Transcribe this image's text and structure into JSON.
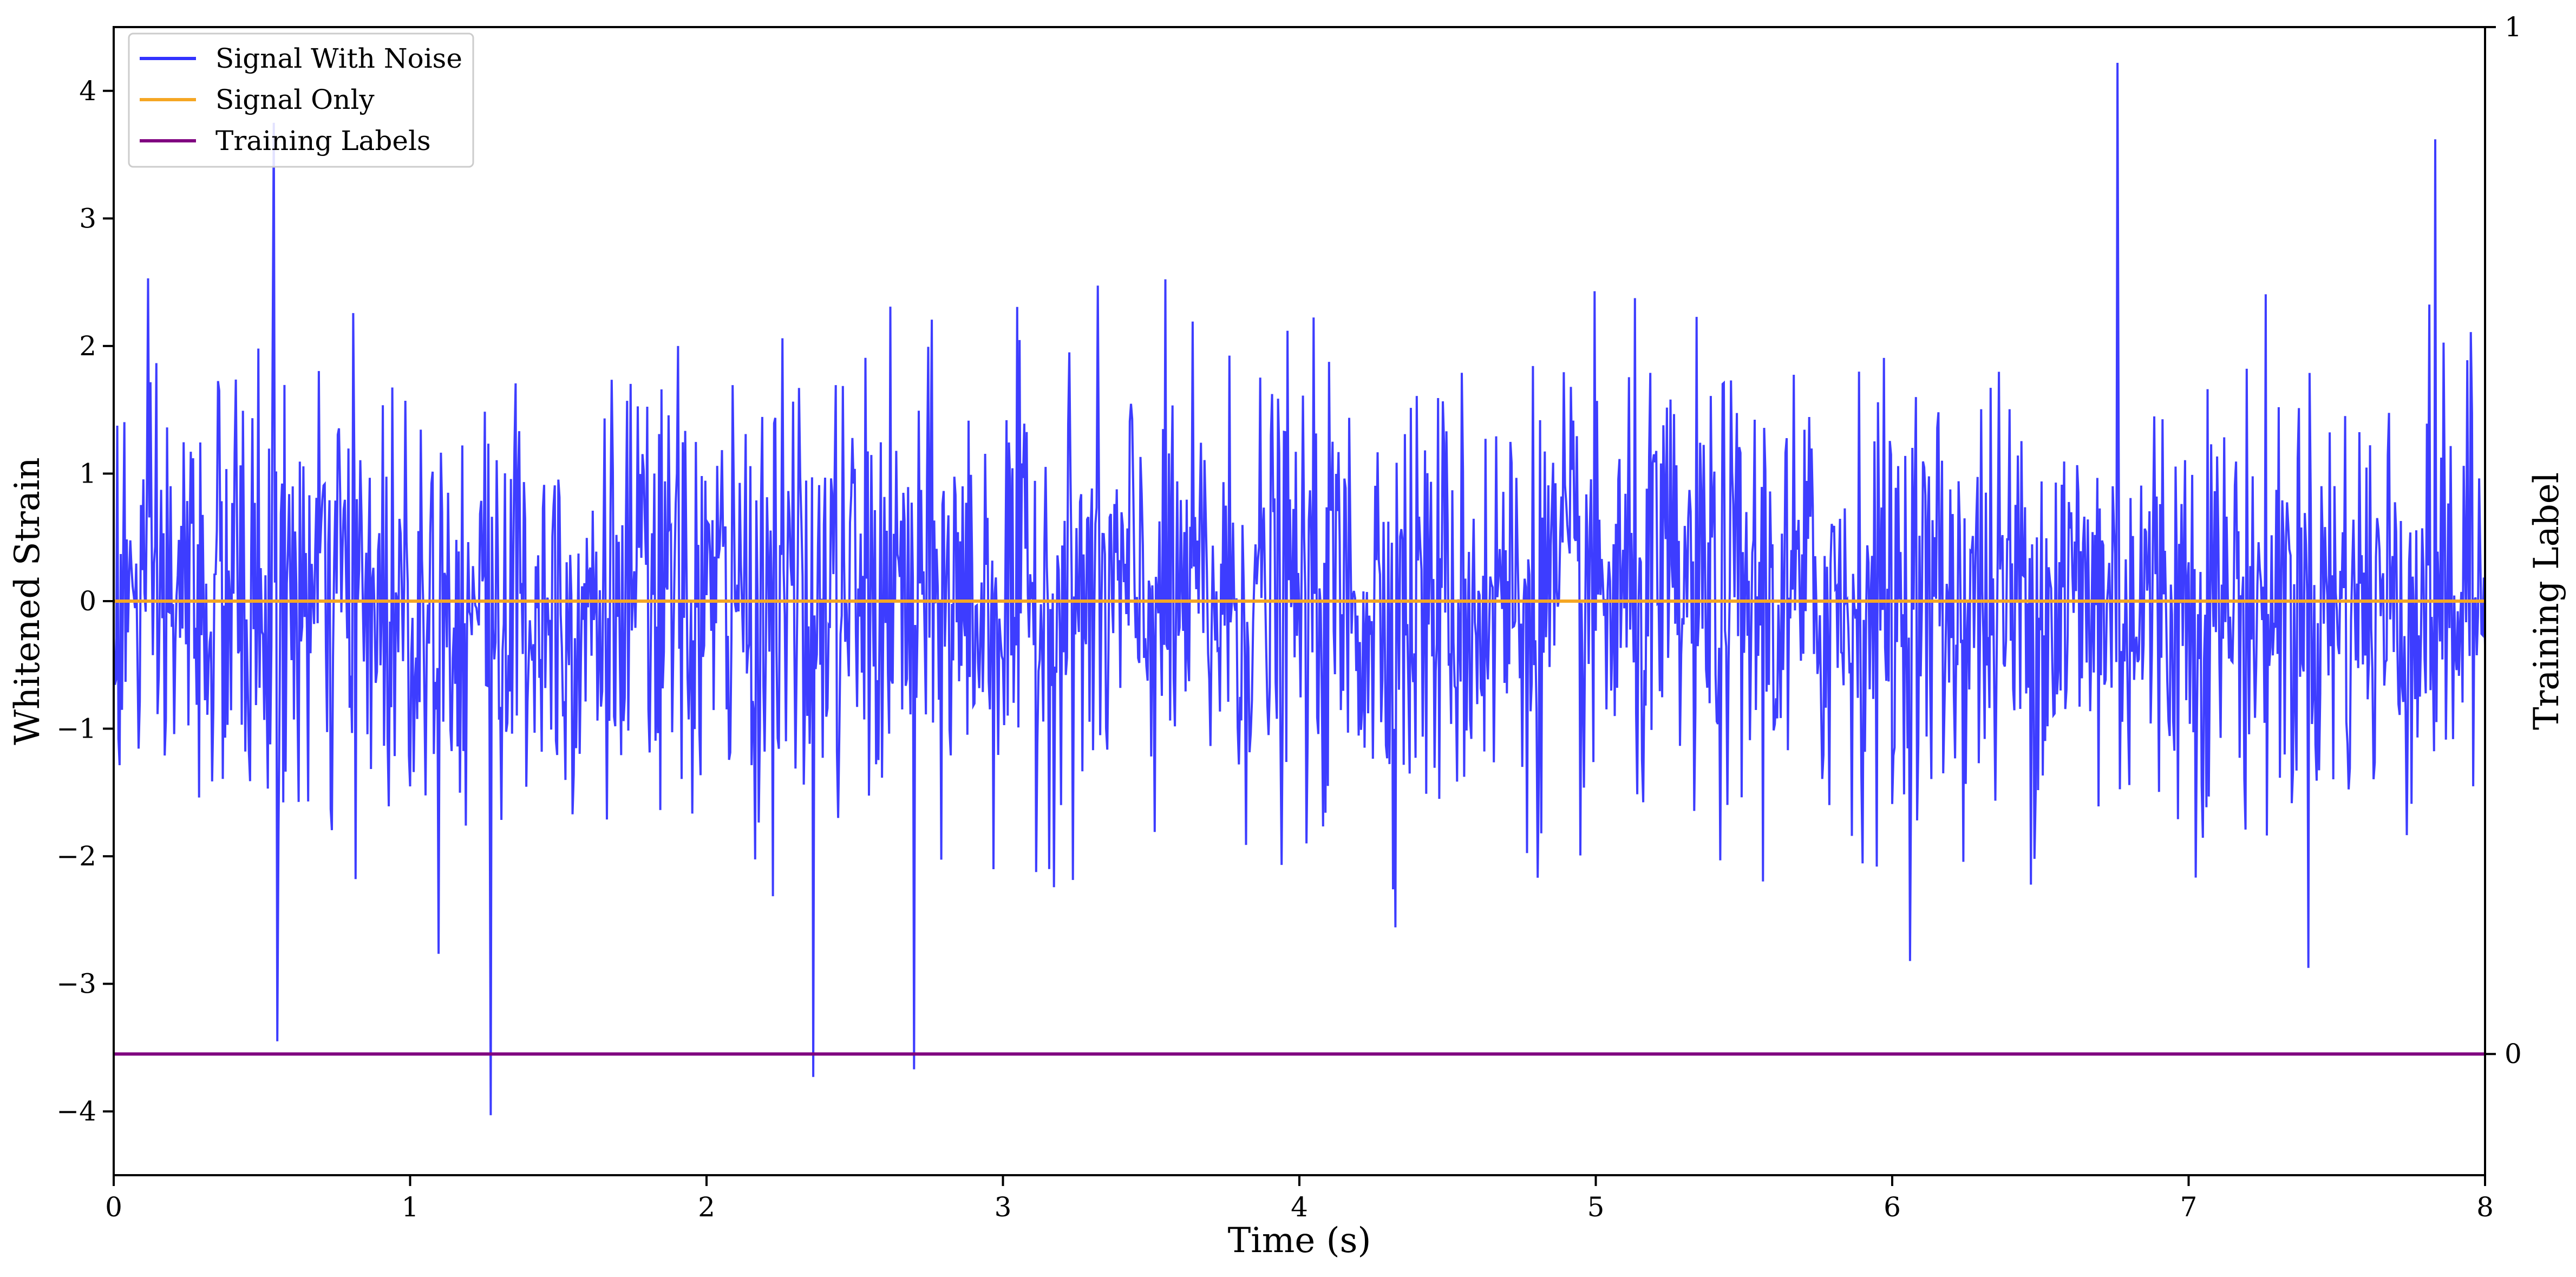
{
  "chart_data": {
    "type": "line",
    "xlabel": "Time (s)",
    "ylabel": "Whitened Strain",
    "y2label": "Training Label",
    "xlim": [
      0,
      8
    ],
    "ylim": [
      -4.5,
      4.5
    ],
    "y2lim": [
      -0.118,
      1.0
    ],
    "xticks": [
      "0",
      "1",
      "2",
      "3",
      "4",
      "5",
      "6",
      "7",
      "8"
    ],
    "yticks": [
      "−4",
      "−3",
      "−2",
      "−1",
      "0",
      "1",
      "2",
      "3",
      "4"
    ],
    "y2ticks": [
      "0",
      "1"
    ],
    "grid": false,
    "legend_position": "upper-left",
    "series": [
      {
        "name": "Signal With Noise",
        "color": "#3333ff",
        "axis": "left",
        "sample_interval_s": 0.004,
        "envelope_note": "dense Gaussian-like noise; samples mostly within ±2.5 with spikes to 4.2 and −4.0",
        "notable_peaks": [
          {
            "x": 0.54,
            "y": 3.75
          },
          {
            "x": 6.76,
            "y": 4.22
          },
          {
            "x": 7.83,
            "y": 3.62
          },
          {
            "x": 1.27,
            "y": -4.03
          },
          {
            "x": 2.36,
            "y": -3.73
          },
          {
            "x": 2.7,
            "y": -3.67
          },
          {
            "x": 0.55,
            "y": -3.45
          }
        ]
      },
      {
        "name": "Signal Only",
        "color": "#f5a623",
        "axis": "left",
        "x": [
          0,
          8
        ],
        "y": [
          0,
          0
        ]
      },
      {
        "name": "Training Labels",
        "color": "#800080",
        "axis": "right",
        "x": [
          0,
          8
        ],
        "y": [
          0,
          0
        ]
      }
    ]
  }
}
